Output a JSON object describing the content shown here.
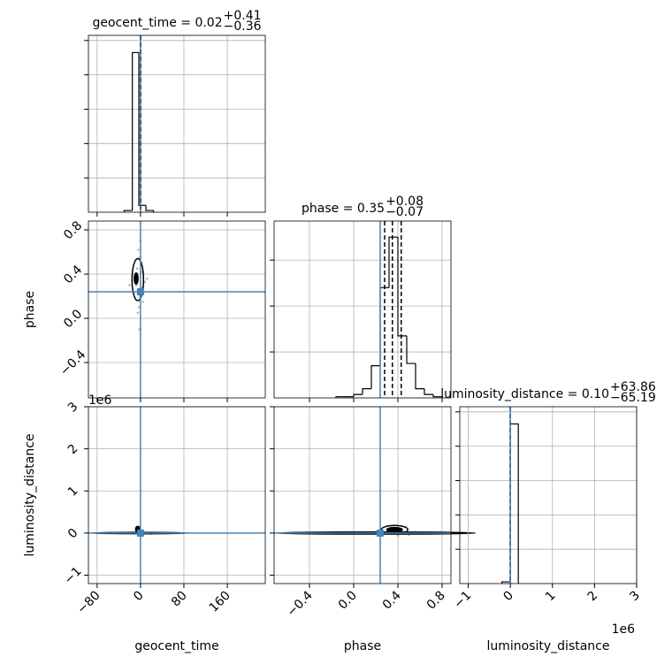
{
  "chart_data": {
    "type": "corner",
    "truth_color": "#4682b4",
    "hist_color": "#000000",
    "point_color": "#888888",
    "grid": true,
    "offset_label": "1e6",
    "parameters": [
      {
        "label": "geocent_time",
        "title": {
          "text": "geocent_time = 0.02",
          "upper": "+0.41",
          "lower": "−0.36"
        },
        "xlim": [
          -96,
          230
        ],
        "ticks": [
          {
            "value": -80,
            "label": "−80"
          },
          0,
          80,
          160
        ],
        "truth": 0,
        "quantiles": [
          -0.34,
          0.02,
          0.43
        ],
        "hist": {
          "bins": [
            -30,
            -15,
            -3,
            10,
            24
          ],
          "counts": [
            1,
            93,
            4,
            1
          ],
          "ylim": [
            0,
            103
          ],
          "yticks": [
            20,
            40,
            60,
            80,
            100
          ]
        }
      },
      {
        "label": "phase",
        "title": {
          "text": "phase = 0.35",
          "upper": "+0.08",
          "lower": "−0.07"
        },
        "xlim": [
          -0.72,
          0.88
        ],
        "ticks": [
          {
            "value": -0.4,
            "label": "−0.4"
          },
          {
            "value": 0,
            "label": "0.0"
          },
          0.4,
          0.8
        ],
        "truth": 0.24,
        "quantiles": [
          0.28,
          0.35,
          0.43
        ],
        "hist": {
          "bins": [
            -0.16,
            -0.08,
            0,
            0.08,
            0.16,
            0.24,
            0.32,
            0.4,
            0.48,
            0.56,
            0.64,
            0.72,
            0.8
          ],
          "counts": [
            0.5,
            0.5,
            1.5,
            4,
            14,
            48,
            70,
            27,
            15,
            4,
            1.5,
            0.5
          ],
          "ylim": [
            0,
            77
          ],
          "yticks": [
            20,
            40,
            60
          ]
        }
      },
      {
        "label": "luminosity_distance",
        "title": {
          "text": "luminosity_distance = 0.10",
          "upper": "+63.86",
          "lower": "−65.19"
        },
        "xlim": [
          -1200000,
          3000000
        ],
        "ticks": [
          {
            "value": -1000000,
            "label": "−1"
          },
          {
            "value": 0,
            "label": "0"
          },
          {
            "value": 1000000,
            "label": "1"
          },
          {
            "value": 2000000,
            "label": "2"
          },
          {
            "value": 3000000,
            "label": "3"
          }
        ],
        "truth": 0,
        "quantiles": [
          -65.09,
          0.1,
          63.96
        ],
        "hist": {
          "bins": [
            -200000,
            0,
            190000
          ],
          "counts": [
            0.01,
            0.93
          ],
          "ylim": [
            0,
            1.03
          ],
          "yticks": [
            0.2,
            0.4,
            0.6,
            0.8,
            1.0
          ]
        }
      }
    ],
    "pairs": [
      {
        "x": [
          -4,
          -2,
          1,
          -6,
          3,
          -8,
          2,
          -1,
          5,
          -3,
          0,
          -10,
          8,
          -5,
          1,
          -20,
          12,
          -2
        ],
        "y": [
          0.62,
          0.55,
          0.5,
          0.45,
          0.42,
          0.3,
          0.28,
          0.2,
          0.15,
          0.1,
          0.7,
          0.38,
          0.33,
          0.05,
          0.25,
          0.3,
          0.36,
          -0.1
        ],
        "contours": [
          {
            "center": [
              -5,
              0.35
            ],
            "radius": [
              10.6,
              0.19
            ],
            "filled": false
          },
          {
            "center": [
              -8,
              0.36
            ],
            "radius": [
              3.5,
              0.05
            ],
            "filled": true
          }
        ]
      },
      {
        "x": [
          -2,
          1,
          3,
          -1,
          5,
          -4,
          2,
          0,
          20,
          -12
        ],
        "y": [
          20000,
          -10000,
          30000,
          5000,
          -20000,
          40000,
          10000,
          -30000,
          -20000,
          15000
        ],
        "contours": [
          {
            "center": [
              -5,
              90000
            ],
            "radius": [
              4,
              70000
            ],
            "filled": true
          },
          {
            "center": [
              0,
              0
            ],
            "radius": [
              90,
              15000
            ],
            "filled": false
          }
        ]
      },
      {
        "x": [
          0.3,
          0.35,
          0.42,
          0.45,
          0.5,
          0.38,
          0.28,
          0.33,
          0.47,
          0.4,
          0.55,
          0.25
        ],
        "y": [
          50000,
          -20000,
          80000,
          30000,
          -40000,
          120000,
          -10000,
          100000,
          150000,
          -60000,
          20000,
          40000
        ],
        "contours": [
          {
            "center": [
              0.37,
              80000
            ],
            "radius": [
              0.12,
              100000
            ],
            "filled": false
          },
          {
            "center": [
              0.37,
              80000
            ],
            "radius": [
              0.07,
              50000
            ],
            "filled": true
          },
          {
            "center": [
              0.2,
              0
            ],
            "radius": [
              0.9,
              25000
            ],
            "filled": false
          }
        ]
      }
    ]
  }
}
